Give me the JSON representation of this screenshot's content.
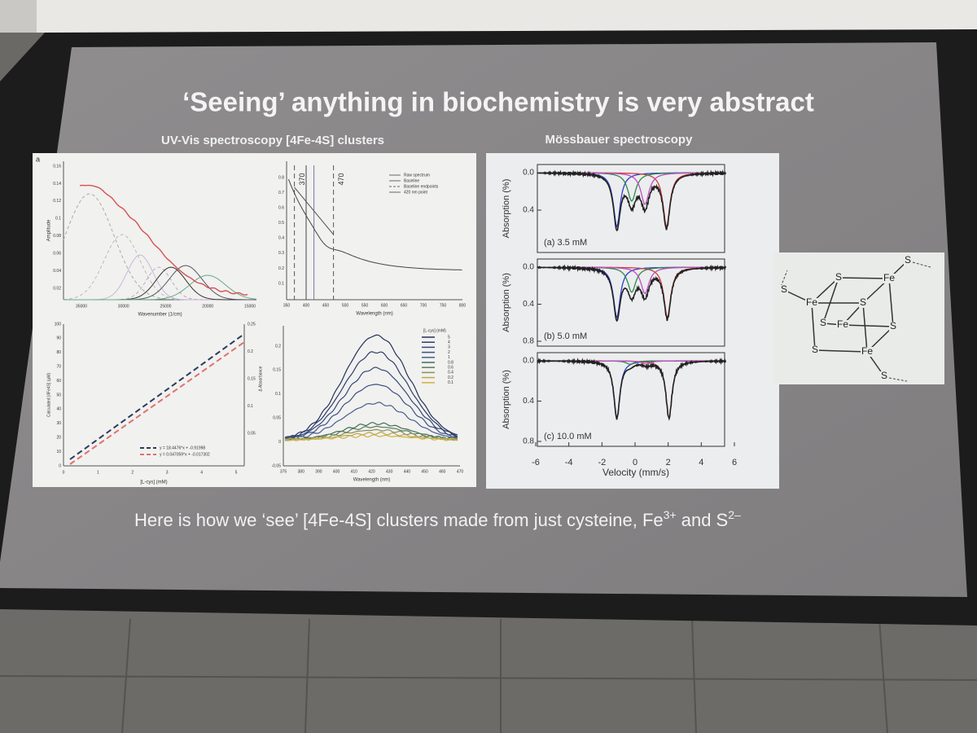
{
  "slide": {
    "title": "‘Seeing’ anything in biochemistry is very abstract",
    "caption": [
      "Here is how we ‘see’ [4Fe-4S] clusters made from just cysteine, Fe",
      "3+",
      " and S",
      "2–"
    ]
  },
  "uvvis": {
    "heading": "UV-Vis spectroscopy [4Fe-4S] clusters",
    "panel_label": "a",
    "a": {
      "xlabel": "Wavenumber (1/cm)",
      "ylabel": "Amplitude",
      "xticks": [
        "35000",
        "30000",
        "25000",
        "20000",
        "15000"
      ],
      "yticks": [
        "0.16",
        "0.14",
        "0.12",
        "0.1",
        "0.08",
        "0.06",
        "0.04",
        "0.02"
      ]
    },
    "b": {
      "xlabel": "Wavelength (nm)",
      "xticks": [
        "350",
        "400",
        "450",
        "500",
        "550",
        "600",
        "650",
        "700",
        "750",
        "800"
      ],
      "yticks": [
        "0.8",
        "0.7",
        "0.6",
        "0.5",
        "0.4",
        "0.3",
        "0.2",
        "0.1"
      ],
      "legend": [
        "Raw spectrum",
        "Baseline",
        "Baseline endpoints",
        "420 nm point"
      ],
      "marks": [
        "370",
        "470"
      ]
    },
    "c": {
      "xlabel": "[L-cys] (mM)",
      "ylabel": "Calculated [4Fe4S] (µM)",
      "y2label": "Δ Absorbance",
      "xticks": [
        "0",
        "1",
        "2",
        "3",
        "4",
        "5"
      ],
      "yticks": [
        "100",
        "90",
        "80",
        "70",
        "60",
        "50",
        "40",
        "30",
        "20",
        "10",
        "0"
      ],
      "y2ticks": [
        "0.25",
        "0.2",
        "0.15",
        "0.1",
        "0.05"
      ],
      "legend": [
        "y = 18.4476*x + -0.91998",
        "y = 0.047059*x + -0.017302"
      ]
    },
    "d": {
      "xlabel": "Wavelength (nm)",
      "xticks": [
        "375",
        "380",
        "390",
        "400",
        "410",
        "420",
        "430",
        "440",
        "450",
        "460",
        "470"
      ],
      "yticks": [
        "0.2",
        "0.15",
        "0.1",
        "0.05",
        "0",
        "-0.05"
      ],
      "legend_title": "[L-cys] (mM)",
      "legend": [
        "5",
        "4",
        "3",
        "2",
        "1",
        "0.8",
        "0.6",
        "0.4",
        "0.2",
        "0.1"
      ]
    }
  },
  "mossbauer": {
    "heading": "Mössbauer spectroscopy",
    "ylabel": "Absorption (%)",
    "xlabel": "Velocity (mm/s)",
    "xticks": [
      "-6",
      "-4",
      "-2",
      "0",
      "2",
      "4",
      "6"
    ],
    "panels": [
      {
        "label": "(a) 3.5 mM",
        "yticks": [
          "0.0",
          "0.4"
        ]
      },
      {
        "label": "(b) 5.0 mM",
        "yticks": [
          "0.0",
          "0.4",
          "0.8"
        ]
      },
      {
        "label": "(c) 10.0 mM",
        "yticks": [
          "0.0",
          "0.4",
          "0.8"
        ]
      }
    ]
  },
  "structure": {
    "atoms": [
      "S",
      "S",
      "S",
      "Fe",
      "Fe",
      "S",
      "S",
      "Fe",
      "S",
      "S",
      "Fe",
      "S"
    ]
  }
}
